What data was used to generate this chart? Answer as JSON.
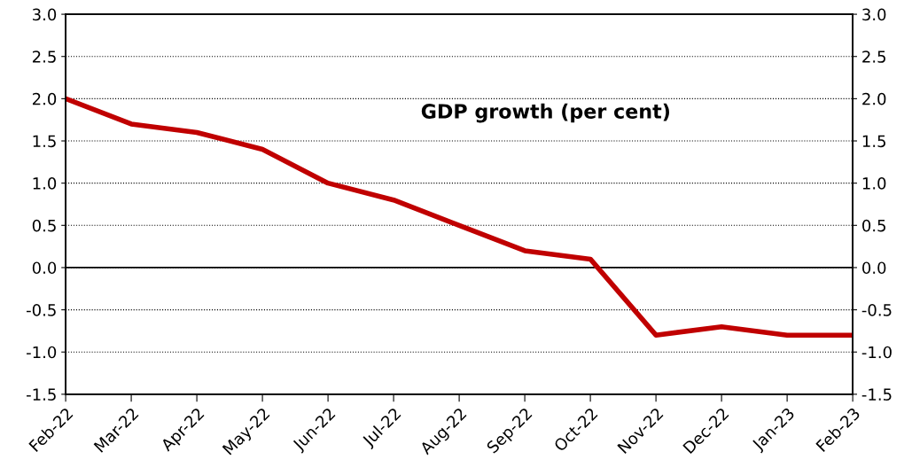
{
  "chart_data": {
    "type": "line",
    "title": "GDP growth (per cent)",
    "categories": [
      "Feb-22",
      "Mar-22",
      "Apr-22",
      "May-22",
      "Jun-22",
      "Jul-22",
      "Aug-22",
      "Sep-22",
      "Oct-22",
      "Nov-22",
      "Dec-22",
      "Jan-23",
      "Feb-23"
    ],
    "series": [
      {
        "color": "#c00000",
        "values": [
          2.0,
          1.7,
          1.6,
          1.4,
          1.0,
          0.8,
          0.5,
          0.2,
          0.1,
          -0.8,
          -0.7,
          -0.8,
          -0.8
        ]
      }
    ],
    "ylim": [
      -1.5,
      3.0
    ],
    "yticks": [
      {
        "value": -1.5,
        "label": "-1.5"
      },
      {
        "value": -1,
        "label": "-1.0"
      },
      {
        "value": -0.5,
        "label": "-0.5"
      },
      {
        "value": 0,
        "label": "0.0"
      },
      {
        "value": 0.5,
        "label": "0.5"
      },
      {
        "value": 1,
        "label": "1.0"
      },
      {
        "value": 1.5,
        "label": "1.5"
      },
      {
        "value": 2,
        "label": "2.0"
      },
      {
        "value": 2.5,
        "label": "2.5"
      },
      {
        "value": 3,
        "label": "3.0"
      }
    ],
    "y2lim": [
      -1.5,
      3.0
    ],
    "y2ticks": [
      {
        "value": -1.5,
        "label": "-1.5"
      },
      {
        "value": -1,
        "label": "-1.0"
      },
      {
        "value": -0.5,
        "label": "-0.5"
      },
      {
        "value": 0,
        "label": "0.0"
      },
      {
        "value": 0.5,
        "label": "0.5"
      },
      {
        "value": 1,
        "label": "1.0"
      },
      {
        "value": 1.5,
        "label": "1.5"
      },
      {
        "value": 2,
        "label": "2.0"
      },
      {
        "value": 2.5,
        "label": "2.5"
      },
      {
        "value": 3,
        "label": "3.0"
      }
    ],
    "ref_lines": [
      {
        "axis": "y",
        "value": 0,
        "color": "#000000",
        "line_style": "solid"
      }
    ],
    "grid": "y",
    "marker": "none",
    "line_style": "solid"
  }
}
